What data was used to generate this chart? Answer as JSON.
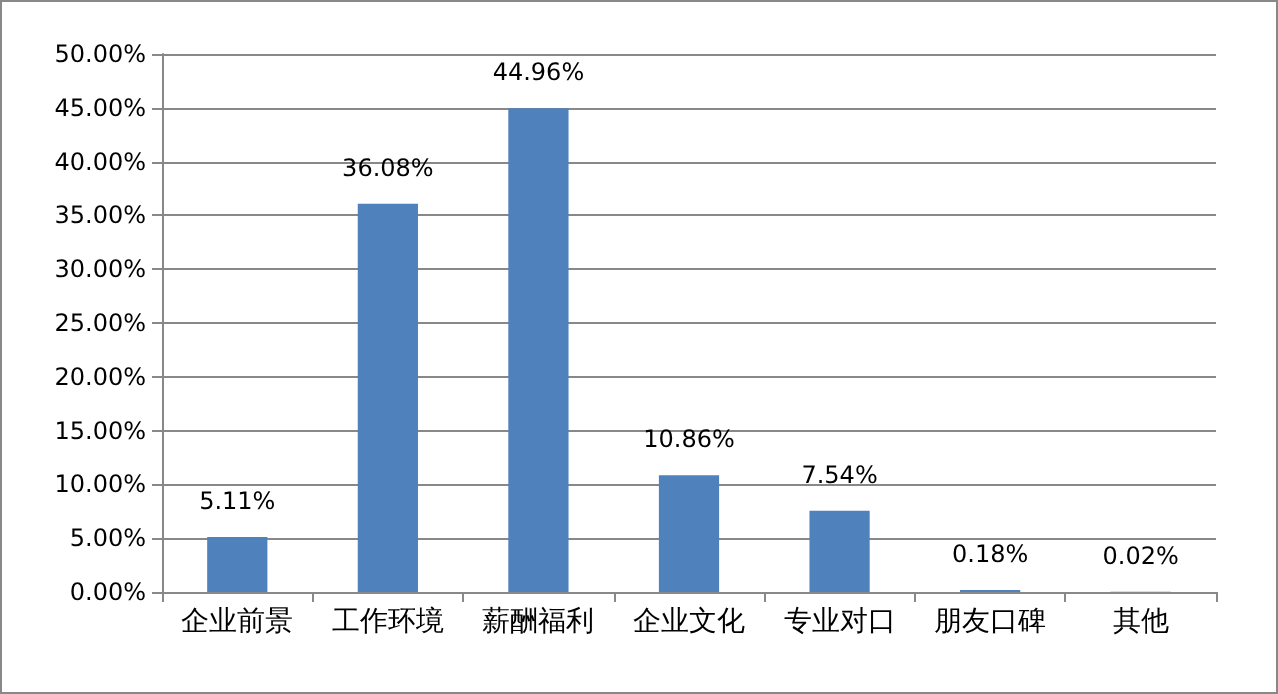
{
  "chart_data": {
    "type": "bar",
    "categories": [
      "企业前景",
      "工作环境",
      "薪酬福利",
      "企业文化",
      "专业对口",
      "朋友口碑",
      "其他"
    ],
    "values": [
      5.11,
      36.08,
      44.96,
      10.86,
      7.54,
      0.18,
      0.02
    ],
    "value_labels": [
      "5.11%",
      "36.08%",
      "44.96%",
      "10.86%",
      "7.54%",
      "0.18%",
      "0.02%"
    ],
    "color": "#4f81bd",
    "ylim": [
      0,
      50
    ],
    "yticks": [
      {
        "value": 0,
        "label": "0.00%"
      },
      {
        "value": 5,
        "label": "5.00%"
      },
      {
        "value": 10,
        "label": "10.00%"
      },
      {
        "value": 15,
        "label": "15.00%"
      },
      {
        "value": 20,
        "label": "20.00%"
      },
      {
        "value": 25,
        "label": "25.00%"
      },
      {
        "value": 30,
        "label": "30.00%"
      },
      {
        "value": 35,
        "label": "35.00%"
      },
      {
        "value": 40,
        "label": "40.00%"
      },
      {
        "value": 45,
        "label": "45.00%"
      },
      {
        "value": 50,
        "label": "50.00%"
      }
    ],
    "grid": "y"
  }
}
